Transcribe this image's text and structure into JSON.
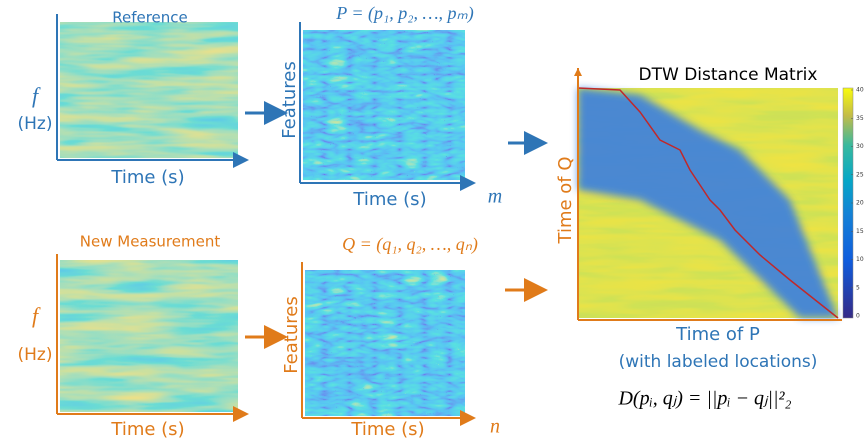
{
  "reference": {
    "title": "Reference",
    "y_label_symbol": "f",
    "y_label_unit": "(Hz)",
    "x_label": "Time (s)"
  },
  "reference_features": {
    "formula": "P = (p₁, p₂, …, pₘ)",
    "y_label": "Features",
    "x_label": "Time (s)",
    "x_symbol": "m"
  },
  "measurement": {
    "title": "New Measurement",
    "y_label_symbol": "f",
    "y_label_unit": "(Hz)",
    "x_label": "Time (s)"
  },
  "measurement_features": {
    "formula": "Q = (q₁, q₂, …, qₙ)",
    "y_label": "Features",
    "x_label": "Time (s)",
    "x_symbol": "n"
  },
  "distance_matrix": {
    "title": "DTW Distance Matrix",
    "y_label": "Time of Q",
    "x_label": "Time of P",
    "x_note": "(with labeled locations)",
    "equation": "D(pᵢ, qⱼ) = ||pᵢ − qⱼ||²₂"
  },
  "colorbar": {
    "lim": [
      0,
      40
    ],
    "ticks": [
      0,
      5,
      10,
      15,
      20,
      25,
      30,
      35,
      40
    ]
  }
}
